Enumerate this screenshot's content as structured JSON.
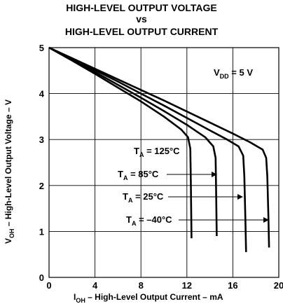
{
  "header": {
    "title_line1": "HIGH-LEVEL OUTPUT VOLTAGE",
    "title_line2": "vs",
    "title_line3": "HIGH-LEVEL OUTPUT CURRENT"
  },
  "chart_data": {
    "type": "line",
    "title": "HIGH-LEVEL OUTPUT VOLTAGE vs HIGH-LEVEL OUTPUT CURRENT",
    "xlabel": {
      "main": "I",
      "sub": "OH",
      "rest": " – High-Level Output Current – mA"
    },
    "ylabel": {
      "main": "V",
      "sub": "OH",
      "rest": " – High-Level Output Voltage – V"
    },
    "xlim": [
      0,
      20
    ],
    "ylim": [
      0,
      5
    ],
    "xticks": [
      0,
      4,
      8,
      12,
      16,
      20
    ],
    "yticks": [
      0,
      1,
      2,
      3,
      4,
      5
    ],
    "grid": true,
    "condition": {
      "main": "V",
      "sub": "DD",
      "rest": " = 5 V"
    },
    "series": [
      {
        "name": "TA = 125°C",
        "label_main": "T",
        "label_sub": "A",
        "label_rest": " = 125°C",
        "points": [
          [
            0,
            5
          ],
          [
            2,
            4.72
          ],
          [
            4,
            4.43
          ],
          [
            6,
            4.13
          ],
          [
            8,
            3.83
          ],
          [
            10,
            3.5
          ],
          [
            11.5,
            3.22
          ],
          [
            12.1,
            3.05
          ],
          [
            12.3,
            2.8
          ],
          [
            12.35,
            2.0
          ],
          [
            12.4,
            0.85
          ]
        ]
      },
      {
        "name": "TA = 85°C",
        "label_main": "T",
        "label_sub": "A",
        "label_rest": " = 85°C",
        "points": [
          [
            0,
            5
          ],
          [
            2,
            4.74
          ],
          [
            4,
            4.47
          ],
          [
            6,
            4.19
          ],
          [
            8,
            3.91
          ],
          [
            10,
            3.62
          ],
          [
            12,
            3.32
          ],
          [
            13.6,
            3.05
          ],
          [
            14.3,
            2.85
          ],
          [
            14.5,
            2.6
          ],
          [
            14.55,
            1.8
          ],
          [
            14.6,
            0.9
          ]
        ]
      },
      {
        "name": "TA = 25°C",
        "label_main": "T",
        "label_sub": "A",
        "label_rest": " = 25°C",
        "points": [
          [
            0,
            5
          ],
          [
            2,
            4.76
          ],
          [
            4,
            4.51
          ],
          [
            6,
            4.26
          ],
          [
            8,
            4.0
          ],
          [
            10,
            3.74
          ],
          [
            12,
            3.47
          ],
          [
            14,
            3.2
          ],
          [
            15.5,
            3.0
          ],
          [
            16.5,
            2.85
          ],
          [
            16.9,
            2.65
          ],
          [
            17.0,
            2.2
          ],
          [
            17.1,
            1.2
          ],
          [
            17.15,
            0.55
          ]
        ]
      },
      {
        "name": "TA = -40°C",
        "label_main": "T",
        "label_sub": "A",
        "label_rest": " = –40°C",
        "points": [
          [
            0,
            5
          ],
          [
            2,
            4.77
          ],
          [
            4,
            4.54
          ],
          [
            6,
            4.31
          ],
          [
            8,
            4.08
          ],
          [
            10,
            3.85
          ],
          [
            12,
            3.61
          ],
          [
            14,
            3.37
          ],
          [
            16,
            3.13
          ],
          [
            17.5,
            2.94
          ],
          [
            18.6,
            2.78
          ],
          [
            18.9,
            2.6
          ],
          [
            19.0,
            2.2
          ],
          [
            19.1,
            1.3
          ],
          [
            19.15,
            0.65
          ]
        ]
      }
    ]
  }
}
